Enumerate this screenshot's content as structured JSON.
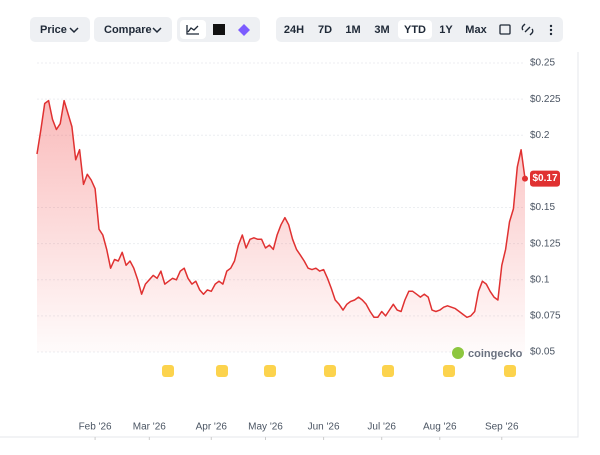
{
  "toolbar": {
    "price": "Price",
    "compare": "Compare",
    "ranges": [
      "24H",
      "7D",
      "1M",
      "3M",
      "YTD",
      "1Y",
      "Max"
    ],
    "selected_range": "YTD"
  },
  "chart_data": {
    "type": "area",
    "color": "#e03131",
    "values": [
      0.187,
      0.204,
      0.222,
      0.224,
      0.211,
      0.204,
      0.208,
      0.224,
      0.215,
      0.206,
      0.183,
      0.19,
      0.166,
      0.173,
      0.169,
      0.163,
      0.135,
      0.131,
      0.121,
      0.108,
      0.114,
      0.113,
      0.119,
      0.11,
      0.113,
      0.108,
      0.1,
      0.09,
      0.097,
      0.1,
      0.103,
      0.101,
      0.106,
      0.097,
      0.099,
      0.101,
      0.1,
      0.106,
      0.108,
      0.101,
      0.097,
      0.099,
      0.093,
      0.09,
      0.093,
      0.092,
      0.097,
      0.099,
      0.097,
      0.106,
      0.108,
      0.113,
      0.124,
      0.131,
      0.122,
      0.128,
      0.129,
      0.128,
      0.128,
      0.122,
      0.124,
      0.121,
      0.131,
      0.138,
      0.143,
      0.138,
      0.128,
      0.121,
      0.117,
      0.113,
      0.108,
      0.107,
      0.108,
      0.106,
      0.107,
      0.101,
      0.094,
      0.086,
      0.083,
      0.079,
      0.083,
      0.085,
      0.086,
      0.088,
      0.086,
      0.083,
      0.078,
      0.074,
      0.074,
      0.078,
      0.075,
      0.079,
      0.083,
      0.079,
      0.078,
      0.086,
      0.092,
      0.092,
      0.09,
      0.088,
      0.09,
      0.088,
      0.079,
      0.078,
      0.079,
      0.081,
      0.082,
      0.081,
      0.08,
      0.078,
      0.076,
      0.074,
      0.075,
      0.078,
      0.092,
      0.099,
      0.097,
      0.092,
      0.088,
      0.086,
      0.11,
      0.121,
      0.14,
      0.149,
      0.178,
      0.19,
      0.17
    ],
    "price_tag": "$0.17",
    "ylim": [
      0.05,
      0.25
    ],
    "yticks": [
      {
        "value": 0.05,
        "label": "$0.05"
      },
      {
        "value": 0.075,
        "label": "$0.075"
      },
      {
        "value": 0.1,
        "label": "$0.1"
      },
      {
        "value": 0.125,
        "label": "$0.125"
      },
      {
        "value": 0.15,
        "label": "$0.15"
      },
      {
        "value": 0.2,
        "label": "$0.2"
      },
      {
        "value": 0.225,
        "label": "$0.225"
      },
      {
        "value": 0.25,
        "label": "$0.25"
      }
    ],
    "xticks": [
      {
        "value": 15,
        "label": "Feb '26"
      },
      {
        "value": 29,
        "label": "Mar '26"
      },
      {
        "value": 45,
        "label": "Apr '26"
      },
      {
        "value": 59,
        "label": "May '26"
      },
      {
        "value": 74,
        "label": "Jun '26"
      },
      {
        "value": 89,
        "label": "Jul '26"
      },
      {
        "value": 104,
        "label": "Aug '26"
      },
      {
        "value": 120,
        "label": "Sep '26"
      }
    ],
    "grid": true,
    "watermark": "coingecko"
  }
}
